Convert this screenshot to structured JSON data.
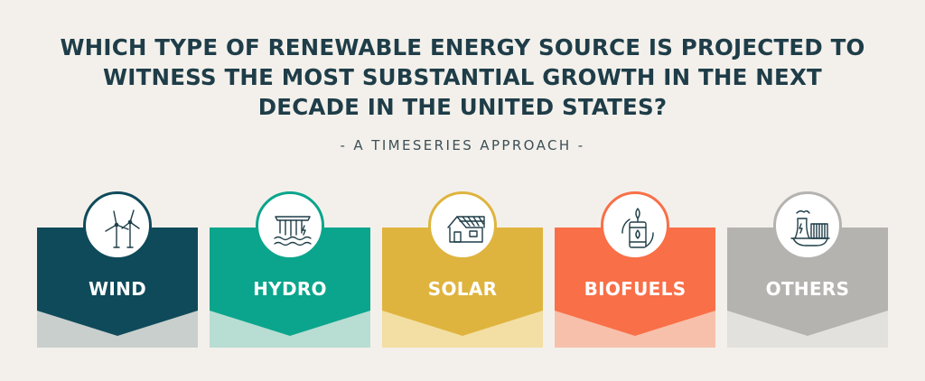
{
  "title": {
    "line1": "WHICH TYPE OF RENEWABLE ENERGY SOURCE IS PROJECTED TO",
    "line2": "WITNESS THE MOST SUBSTANTIAL GROWTH IN THE NEXT",
    "line3": "DECADE IN THE UNITED STATES?"
  },
  "subtitle": "- A TIMESERIES APPROACH -",
  "categories": [
    {
      "label": "WIND",
      "icon": "wind-turbine-icon",
      "color": "#0f4a5a",
      "base_color": "#c9cfcd"
    },
    {
      "label": "HYDRO",
      "icon": "hydro-dam-icon",
      "color": "#0aa58c",
      "base_color": "#b8ddd2"
    },
    {
      "label": "SOLAR",
      "icon": "solar-house-icon",
      "color": "#dfb43e",
      "base_color": "#f3dfa3"
    },
    {
      "label": "BIOFUELS",
      "icon": "biofuel-barrel-icon",
      "color": "#f96f48",
      "base_color": "#f7c0ab"
    },
    {
      "label": "OTHERS",
      "icon": "power-plant-icon",
      "color": "#b4b3b0",
      "base_color": "#e3e1dd"
    }
  ]
}
